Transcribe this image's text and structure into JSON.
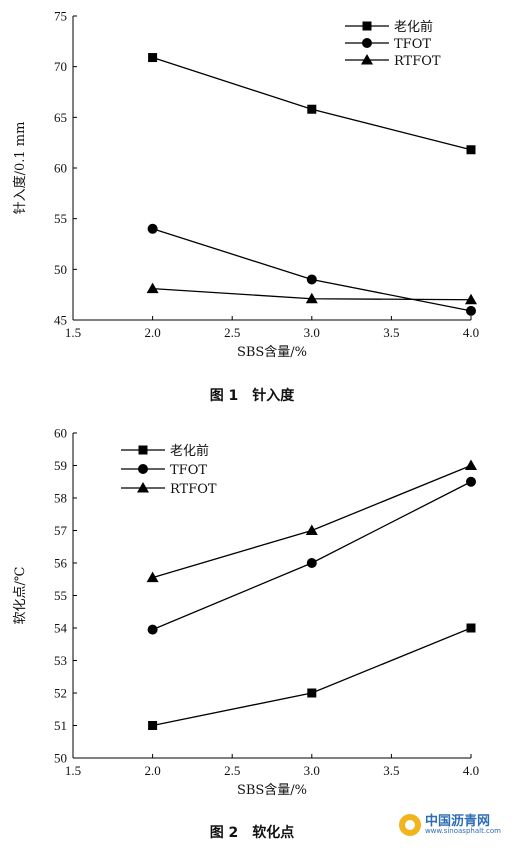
{
  "chart_data": [
    {
      "type": "line",
      "caption": "图 1　针入度",
      "xlabel": "SBS含量/%",
      "ylabel": "针入度/0.1 mm",
      "xlim": [
        1.5,
        4.0
      ],
      "ylim": [
        45,
        75
      ],
      "xticks": [
        "1.5",
        "2.0",
        "2.5",
        "3.0",
        "3.5",
        "4.0"
      ],
      "yticks": [
        "45",
        "50",
        "55",
        "60",
        "65",
        "70",
        "75"
      ],
      "legend_position": "top-right",
      "grid": false,
      "x": [
        2.0,
        3.0,
        4.0
      ],
      "series": [
        {
          "name": "老化前",
          "marker": "square",
          "values": [
            70.9,
            65.8,
            61.8
          ]
        },
        {
          "name": "TFOT",
          "marker": "circle",
          "values": [
            54.0,
            49.0,
            45.9
          ]
        },
        {
          "name": "RTFOT",
          "marker": "triangle",
          "values": [
            48.1,
            47.1,
            47.0
          ]
        }
      ]
    },
    {
      "type": "line",
      "caption": "图 2　软化点",
      "xlabel": "SBS含量/%",
      "ylabel": "软化点/℃",
      "xlim": [
        1.5,
        4.0
      ],
      "ylim": [
        50,
        60
      ],
      "xticks": [
        "1.5",
        "2.0",
        "2.5",
        "3.0",
        "3.5",
        "4.0"
      ],
      "yticks": [
        "50",
        "51",
        "52",
        "53",
        "54",
        "55",
        "56",
        "57",
        "58",
        "59",
        "60"
      ],
      "legend_position": "top-left",
      "grid": false,
      "x": [
        2.0,
        3.0,
        4.0
      ],
      "series": [
        {
          "name": "老化前",
          "marker": "square",
          "values": [
            51.0,
            52.0,
            54.0
          ]
        },
        {
          "name": "TFOT",
          "marker": "circle",
          "values": [
            53.95,
            56.0,
            58.5
          ]
        },
        {
          "name": "RTFOT",
          "marker": "triangle",
          "values": [
            55.55,
            57.0,
            59.0
          ]
        }
      ]
    }
  ],
  "watermark": {
    "name": "中国沥青网",
    "url": "www.sinoasphalt.com"
  }
}
